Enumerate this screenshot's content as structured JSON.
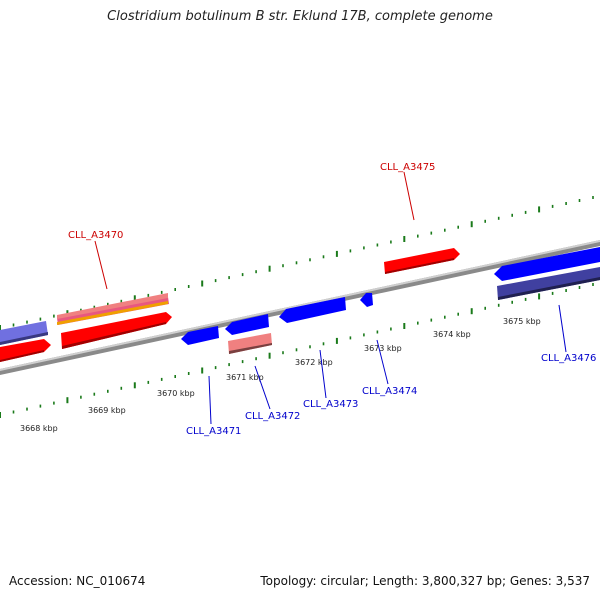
{
  "title": "Clostridium botulinum B str. Eklund 17B, complete genome",
  "accession_text": "Accession: NC_010674",
  "summary_text": "Topology: circular; Length: 3,800,327 bp; Genes: 3,537",
  "colors": {
    "forward_gene": "#ff0000",
    "reverse_gene": "#0000ff",
    "label_forward": "#cc0000",
    "label_reverse": "#0000cc",
    "ruler_ticks": "#1a7a1a",
    "backbone": "#888888"
  },
  "ruler_labels": [
    "3668 kbp",
    "3669 kbp",
    "3670 kbp",
    "3671 kbp",
    "3672 kbp",
    "3673 kbp",
    "3674 kbp",
    "3675 kbp"
  ],
  "gene_labels": [
    {
      "text": "CLL_A3470",
      "strand": "forward"
    },
    {
      "text": "CLL_A3475",
      "strand": "forward"
    },
    {
      "text": "CLL_A3471",
      "strand": "reverse"
    },
    {
      "text": "CLL_A3472",
      "strand": "reverse"
    },
    {
      "text": "CLL_A3473",
      "strand": "reverse"
    },
    {
      "text": "CLL_A3474",
      "strand": "reverse"
    },
    {
      "text": "CLL_A3476",
      "strand": "reverse"
    }
  ]
}
